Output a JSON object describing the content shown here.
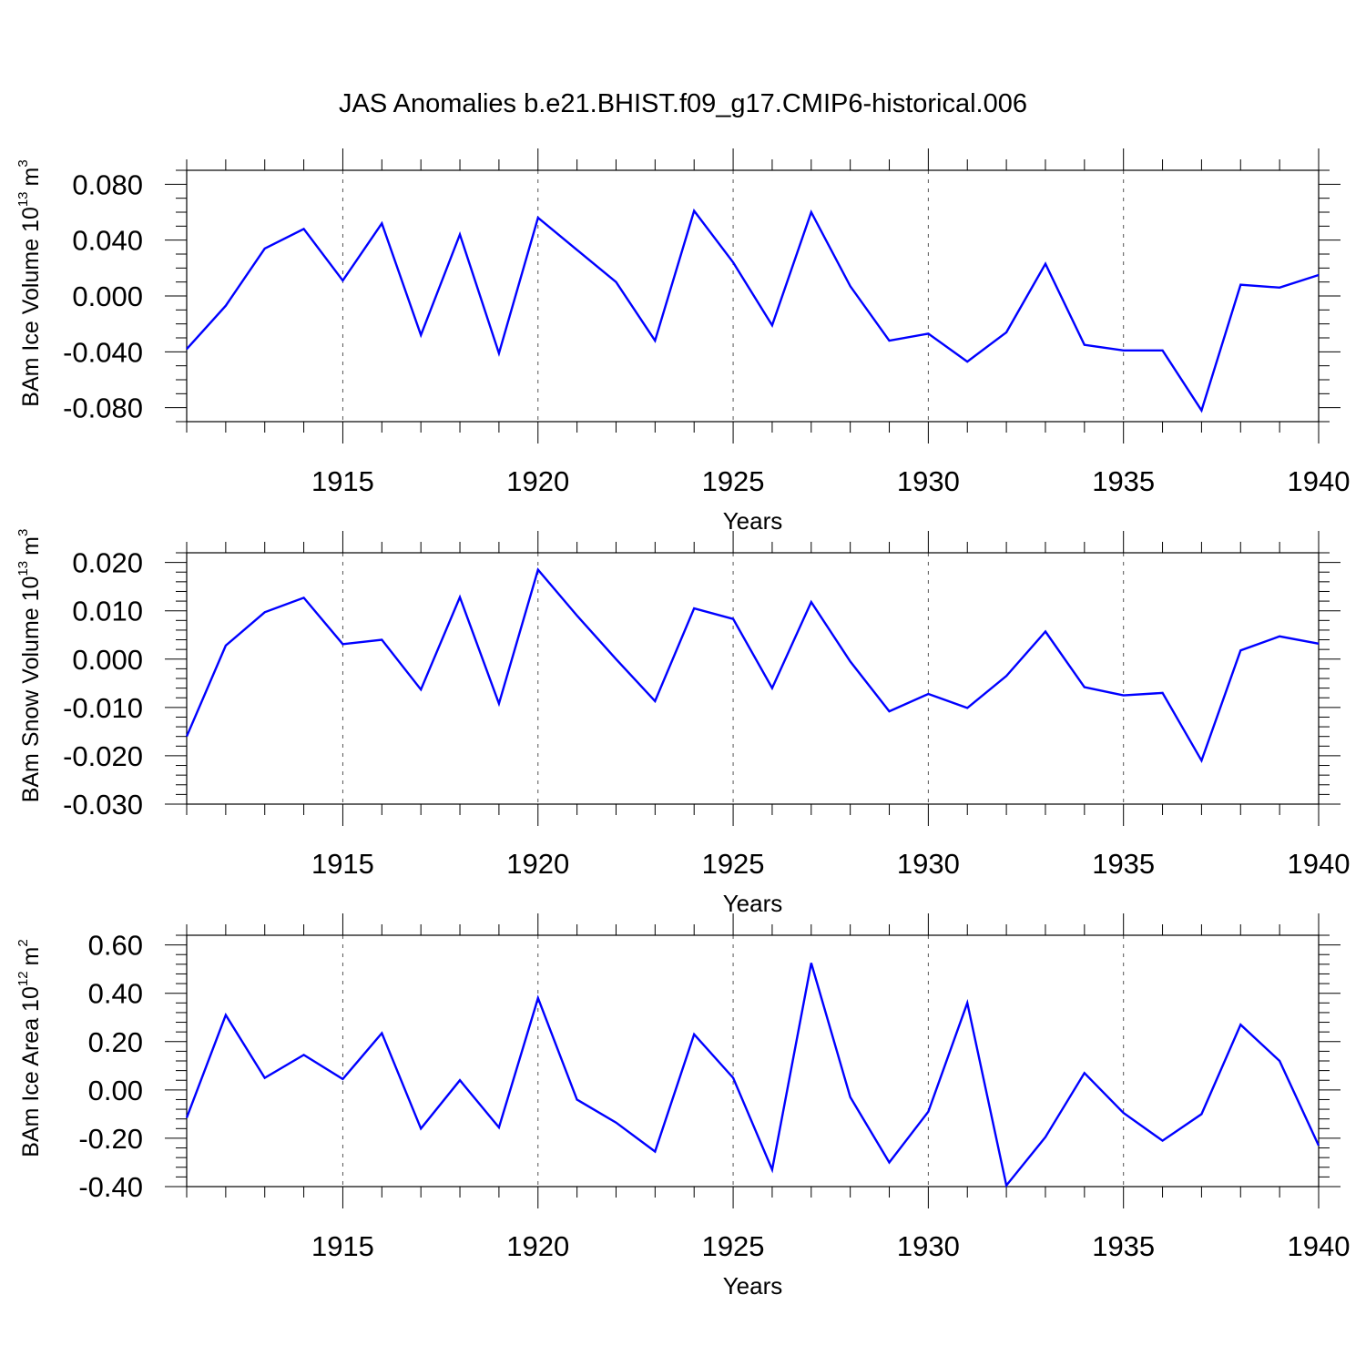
{
  "title": "JAS Anomalies b.e21.BHIST.f09_g17.CMIP6-historical.006",
  "colors": {
    "line": "#0000ff",
    "axis": "#000000",
    "grid": "#555555"
  },
  "chart_data": [
    {
      "type": "line",
      "ylabel": "BAm Ice Volume 10",
      "ylabel_sup": "13",
      "ylabel_unit": "m",
      "ylabel_unit_sup": "3",
      "xlabel": "Years",
      "xlim": [
        1911,
        1940
      ],
      "ylim": [
        -0.09,
        0.09
      ],
      "x_ticks": [
        1915,
        1920,
        1925,
        1930,
        1935,
        1940
      ],
      "x_tick_labels": [
        "1915",
        "1920",
        "1925",
        "1930",
        "1935",
        "1940"
      ],
      "y_ticks": [
        0.08,
        0.04,
        0.0,
        -0.04,
        -0.08
      ],
      "y_tick_labels": [
        "0.080",
        "0.040",
        "0.000",
        "-0.040",
        "-0.080"
      ],
      "y_minor_step": 0.01,
      "grid": "vertical dashed at major x ticks",
      "series": [
        {
          "x": [
            1911,
            1912,
            1913,
            1914,
            1915,
            1916,
            1917,
            1918,
            1919,
            1920,
            1921,
            1922,
            1923,
            1924,
            1925,
            1926,
            1927,
            1928,
            1929,
            1930,
            1931,
            1932,
            1933,
            1934,
            1935,
            1936,
            1937,
            1938,
            1939,
            1940
          ],
          "y": [
            -0.038,
            -0.007,
            0.034,
            0.048,
            0.011,
            0.052,
            -0.028,
            0.044,
            -0.041,
            0.056,
            0.033,
            0.01,
            -0.032,
            0.061,
            0.024,
            -0.021,
            0.06,
            0.007,
            -0.032,
            -0.027,
            -0.047,
            -0.026,
            0.023,
            -0.035,
            -0.039,
            -0.039,
            -0.082,
            0.008,
            0.006,
            0.015
          ]
        }
      ]
    },
    {
      "type": "line",
      "ylabel": "BAm Snow Volume 10",
      "ylabel_sup": "13",
      "ylabel_unit": "m",
      "ylabel_unit_sup": "3",
      "xlabel": "Years",
      "xlim": [
        1911,
        1940
      ],
      "ylim": [
        -0.03,
        0.022
      ],
      "x_ticks": [
        1915,
        1920,
        1925,
        1930,
        1935,
        1940
      ],
      "x_tick_labels": [
        "1915",
        "1920",
        "1925",
        "1930",
        "1935",
        "1940"
      ],
      "y_ticks": [
        0.02,
        0.01,
        0.0,
        -0.01,
        -0.02,
        -0.03
      ],
      "y_tick_labels": [
        "0.020",
        "0.010",
        "0.000",
        "-0.010",
        "-0.020",
        "-0.030"
      ],
      "y_minor_step": 0.002,
      "grid": "vertical dashed at major x ticks",
      "series": [
        {
          "x": [
            1911,
            1912,
            1913,
            1914,
            1915,
            1916,
            1917,
            1918,
            1919,
            1920,
            1921,
            1922,
            1923,
            1924,
            1925,
            1926,
            1927,
            1928,
            1929,
            1930,
            1931,
            1932,
            1933,
            1934,
            1935,
            1936,
            1937,
            1938,
            1939,
            1940
          ],
          "y": [
            -0.016,
            0.0028,
            0.0097,
            0.0127,
            0.0031,
            0.004,
            -0.0063,
            0.0128,
            -0.0092,
            0.0185,
            0.009,
            0.0,
            -0.0087,
            0.0105,
            0.0083,
            -0.006,
            0.0118,
            -0.0005,
            -0.0108,
            -0.0072,
            -0.0101,
            -0.0035,
            0.0057,
            -0.0058,
            -0.0075,
            -0.007,
            -0.021,
            0.0018,
            0.0047,
            0.0032
          ]
        }
      ]
    },
    {
      "type": "line",
      "ylabel": "BAm Ice Area 10",
      "ylabel_sup": "12",
      "ylabel_unit": "m",
      "ylabel_unit_sup": "2",
      "xlabel": "Years",
      "xlim": [
        1911,
        1940
      ],
      "ylim": [
        -0.4,
        0.64
      ],
      "x_ticks": [
        1915,
        1920,
        1925,
        1930,
        1935,
        1940
      ],
      "x_tick_labels": [
        "1915",
        "1920",
        "1925",
        "1930",
        "1935",
        "1940"
      ],
      "y_ticks": [
        0.6,
        0.4,
        0.2,
        0.0,
        -0.2,
        -0.4
      ],
      "y_tick_labels": [
        "0.60",
        "0.40",
        "0.20",
        "0.00",
        "-0.20",
        "-0.40"
      ],
      "y_minor_step": 0.04,
      "grid": "vertical dashed at major x ticks",
      "series": [
        {
          "x": [
            1911,
            1912,
            1913,
            1914,
            1915,
            1916,
            1917,
            1918,
            1919,
            1920,
            1921,
            1922,
            1923,
            1924,
            1925,
            1926,
            1927,
            1928,
            1929,
            1930,
            1931,
            1932,
            1933,
            1934,
            1935,
            1936,
            1937,
            1938,
            1939,
            1940
          ],
          "y": [
            -0.115,
            0.31,
            0.05,
            0.145,
            0.045,
            0.235,
            -0.16,
            0.04,
            -0.155,
            0.38,
            -0.04,
            -0.135,
            -0.255,
            0.23,
            0.05,
            -0.33,
            0.525,
            -0.03,
            -0.3,
            -0.09,
            0.36,
            -0.395,
            -0.195,
            0.07,
            -0.095,
            -0.21,
            -0.1,
            0.27,
            0.12,
            -0.23
          ]
        }
      ]
    }
  ]
}
